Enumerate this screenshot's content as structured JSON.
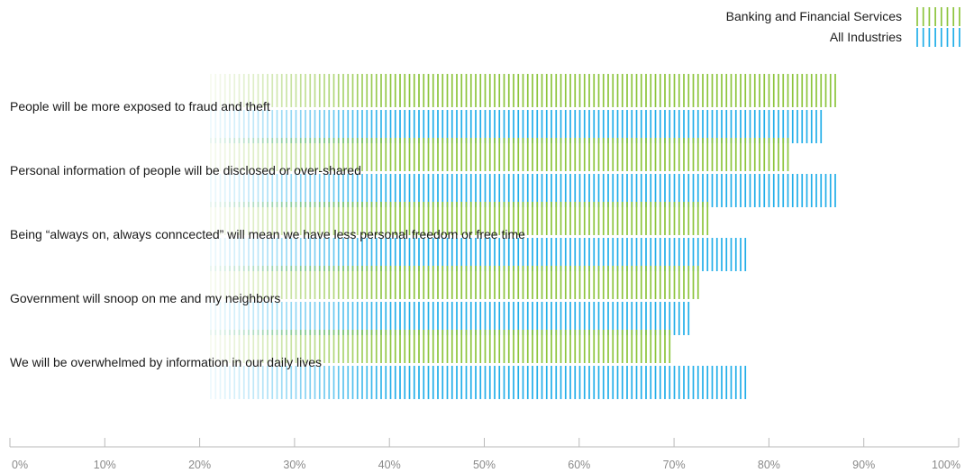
{
  "chart_data": {
    "type": "bar",
    "orientation": "horizontal",
    "title": "",
    "xlabel": "",
    "ylabel": "",
    "xlim": [
      0,
      100
    ],
    "grid": false,
    "legend_position": "top-right",
    "categories": [
      "People will be more exposed to fraud and theft",
      "Personal information of people will be disclosed or over-shared",
      "Being “always on, always conncected” will mean we have less personal freedom or free time",
      "Government will snoop on me and my neighbors",
      "We will be overwhelmed by information in our daily lives"
    ],
    "series": [
      {
        "name": "Banking and Financial Services",
        "color": "#8cc43c",
        "values": [
          87,
          82.5,
          74,
          73,
          70
        ]
      },
      {
        "name": "All Industries",
        "color": "#21aee8",
        "values": [
          85.5,
          87,
          78,
          72,
          78
        ]
      }
    ],
    "x_ticks": [
      "0%",
      "10%",
      "20%",
      "30%",
      "40%",
      "50%",
      "60%",
      "70%",
      "80%",
      "90%",
      "100%"
    ]
  }
}
